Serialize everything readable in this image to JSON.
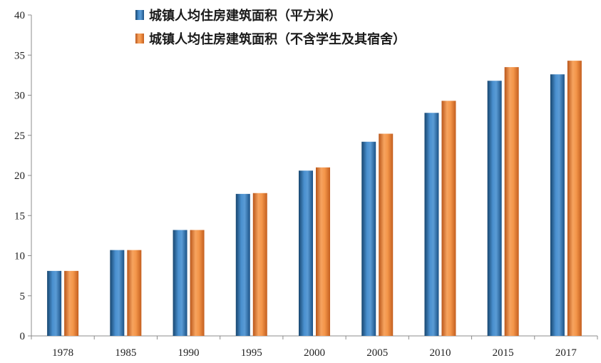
{
  "chart_data": {
    "type": "bar",
    "categories": [
      "1978",
      "1985",
      "1990",
      "1995",
      "2000",
      "2005",
      "2010",
      "2015",
      "2017"
    ],
    "series": [
      {
        "name": "城镇人均住房建筑面积（平方米）",
        "values": [
          8.1,
          10.7,
          13.2,
          17.7,
          20.6,
          24.2,
          27.8,
          31.8,
          32.6
        ],
        "color": "#2E75B6"
      },
      {
        "name": "城镇人均住房建筑面积（不含学生及其宿舍）",
        "values": [
          8.1,
          10.7,
          13.2,
          17.8,
          21.0,
          25.2,
          29.3,
          33.5,
          34.3
        ],
        "color": "#ED7D31"
      }
    ],
    "ylim": [
      0,
      40
    ],
    "yticks": [
      0,
      5,
      10,
      15,
      20,
      25,
      30,
      35,
      40
    ],
    "legend_position": "top",
    "grid": false
  }
}
